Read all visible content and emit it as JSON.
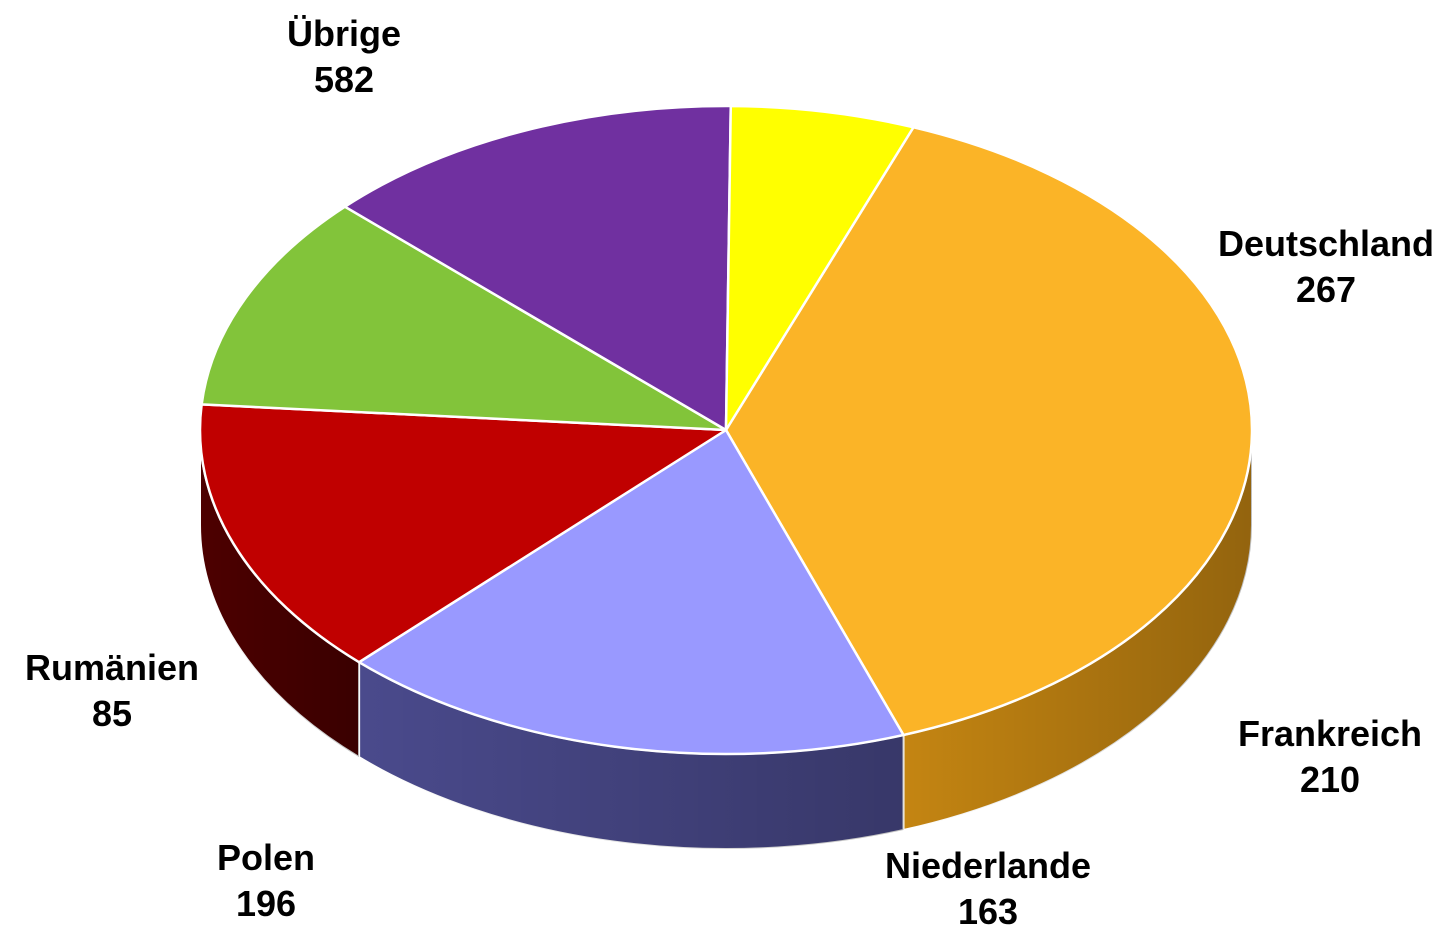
{
  "chart_data": {
    "type": "pie",
    "style": "3d",
    "slices": [
      {
        "label": "Übrige",
        "value": 582,
        "color": "#FBB427",
        "side_color": "#C48512"
      },
      {
        "label": "Deutschland",
        "value": 267,
        "color": "#9999FF",
        "side_color": "#4A4A8C"
      },
      {
        "label": "Frankreich",
        "value": 210,
        "color": "#C00000",
        "side_color": "#4D0000"
      },
      {
        "label": "Niederlande",
        "value": 163,
        "color": "#82C43A",
        "side_color": "#34501A"
      },
      {
        "label": "Polen",
        "value": 196,
        "color": "#7030A0",
        "side_color": "#421C5E"
      },
      {
        "label": "Rumänien",
        "value": 85,
        "color": "#FFFF00",
        "side_color": "#CCCC00"
      }
    ]
  }
}
